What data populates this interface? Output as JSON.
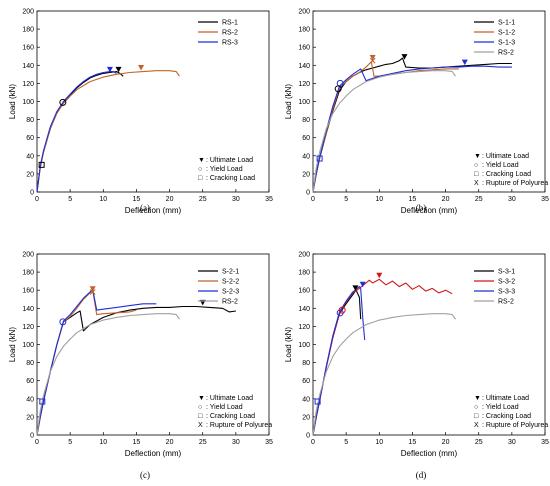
{
  "colors": {
    "black": "#000000",
    "orange": "#c0622a",
    "blue": "#1f2fd6",
    "gray": "#a0a0a0",
    "red": "#d01818"
  },
  "chart_data": [
    {
      "panel": "(a)",
      "type": "line",
      "xlabel": "Deflection (mm)",
      "ylabel": "Load (kN)",
      "xlim": [
        0,
        35
      ],
      "ylim": [
        0,
        200
      ],
      "xticks": [
        "0",
        "5",
        "10",
        "15",
        "20",
        "25",
        "30",
        "35"
      ],
      "yticks": [
        "0",
        "20",
        "40",
        "60",
        "80",
        "100",
        "120",
        "140",
        "160",
        "180",
        "200"
      ],
      "legend_position": "top-right",
      "series": [
        {
          "name": "RS-1",
          "color": "#000000",
          "x": [
            0,
            0.5,
            1,
            2,
            3,
            4,
            5,
            6,
            7,
            8,
            9,
            10,
            11,
            12,
            12.5,
            13
          ],
          "y": [
            0,
            28,
            45,
            70,
            88,
            99,
            107,
            115,
            121,
            126,
            129,
            131,
            132,
            133,
            131,
            128
          ]
        },
        {
          "name": "RS-2",
          "color": "#c0622a",
          "x": [
            0,
            0.5,
            1,
            2,
            3,
            4,
            5,
            6,
            8,
            10,
            12,
            14,
            16,
            18,
            20,
            21,
            21.5
          ],
          "y": [
            0,
            27,
            44,
            70,
            87,
            98,
            106,
            113,
            122,
            127,
            130,
            132,
            133,
            134,
            134,
            133,
            128
          ]
        },
        {
          "name": "RS-3",
          "color": "#1f2fd6",
          "x": [
            0,
            0.5,
            1,
            2,
            3,
            4,
            5,
            6,
            7,
            8,
            9,
            10,
            11,
            11.5,
            12
          ],
          "y": [
            0,
            29,
            46,
            72,
            89,
            100,
            108,
            116,
            122,
            127,
            130,
            132,
            133,
            133,
            131
          ]
        }
      ],
      "markers": {
        "ultimate": [
          {
            "x": 11,
            "y": 135,
            "color": "#1f2fd6"
          },
          {
            "x": 12.3,
            "y": 135,
            "color": "#000000"
          },
          {
            "x": 15.7,
            "y": 137,
            "color": "#c0622a"
          }
        ],
        "yield": [
          {
            "x": 3.9,
            "y": 99,
            "color": "#000000"
          }
        ],
        "cracking": [
          {
            "x": 0.7,
            "y": 30,
            "color": "#000000"
          }
        ]
      },
      "marker_legend": [
        {
          "symbol": "▼",
          "text": ": Ultimate Load"
        },
        {
          "symbol": "○",
          "text": ": Yield Load"
        },
        {
          "symbol": "□",
          "text": ": Cracking Load"
        }
      ]
    },
    {
      "panel": "(b)",
      "type": "line",
      "xlabel": "Deflection (mm)",
      "ylabel": "Load (kN)",
      "xlim": [
        0,
        35
      ],
      "ylim": [
        0,
        200
      ],
      "xticks": [
        "0",
        "5",
        "10",
        "15",
        "20",
        "25",
        "30",
        "35"
      ],
      "yticks": [
        "0",
        "20",
        "40",
        "60",
        "80",
        "100",
        "120",
        "140",
        "160",
        "180",
        "200"
      ],
      "legend_position": "top-right",
      "series": [
        {
          "name": "S-1-1",
          "color": "#000000",
          "x": [
            0,
            0.5,
            1,
            2,
            3,
            4,
            5,
            6,
            7,
            8,
            9,
            10,
            11,
            12,
            13,
            13.5,
            14,
            16,
            18,
            20,
            22,
            24,
            26,
            28,
            30
          ],
          "y": [
            0,
            20,
            37,
            65,
            90,
            112,
            122,
            128,
            132,
            135,
            137,
            139,
            141,
            142,
            145,
            148,
            138,
            137,
            137,
            138,
            139,
            140,
            141,
            142,
            142
          ]
        },
        {
          "name": "S-1-2",
          "color": "#c0622a",
          "x": [
            0,
            0.5,
            1,
            2,
            3,
            4,
            5,
            6,
            7,
            8,
            8.8,
            9.2,
            10,
            12,
            14,
            16,
            18,
            20,
            22
          ],
          "y": [
            0,
            20,
            37,
            66,
            92,
            115,
            122,
            128,
            132,
            138,
            144,
            128,
            128,
            130,
            132,
            134,
            135,
            136,
            136
          ]
        },
        {
          "name": "S-1-3",
          "color": "#1f2fd6",
          "x": [
            0,
            0.5,
            1,
            2,
            3,
            4,
            5,
            6,
            7,
            7.2,
            8,
            10,
            12,
            14,
            16,
            18,
            20,
            22,
            24,
            26,
            28,
            30
          ],
          "y": [
            0,
            21,
            38,
            68,
            95,
            117,
            124,
            130,
            135,
            136,
            123,
            128,
            131,
            134,
            136,
            137,
            138,
            138,
            139,
            139,
            138,
            138
          ]
        },
        {
          "name": "RS-2",
          "color": "#a0a0a0",
          "x": [
            0,
            0.5,
            1,
            2,
            3,
            4,
            5,
            6,
            8,
            10,
            12,
            14,
            16,
            18,
            20,
            21,
            21.5
          ],
          "y": [
            0,
            27,
            44,
            70,
            87,
            98,
            106,
            113,
            122,
            127,
            130,
            132,
            133,
            134,
            134,
            133,
            128
          ]
        }
      ],
      "markers": {
        "ultimate": [
          {
            "x": 9,
            "y": 148,
            "color": "#c0622a"
          },
          {
            "x": 13.8,
            "y": 149,
            "color": "#000000"
          },
          {
            "x": 22.9,
            "y": 143,
            "color": "#1f2fd6"
          }
        ],
        "yield": [
          {
            "x": 4.1,
            "y": 120,
            "color": "#1f2fd6"
          },
          {
            "x": 3.8,
            "y": 114,
            "color": "#000000"
          }
        ],
        "cracking": [
          {
            "x": 1,
            "y": 37,
            "color": "#1f2fd6"
          }
        ],
        "rupture": [
          {
            "x": 9,
            "y": 145,
            "color": "#c0622a"
          }
        ]
      },
      "marker_legend": [
        {
          "symbol": "▼",
          "text": ": Ultimate Load"
        },
        {
          "symbol": "○",
          "text": ": Yield Load"
        },
        {
          "symbol": "□",
          "text": ": Cracking Load"
        },
        {
          "symbol": "X",
          "text": ": Rupture of Polyurea"
        }
      ]
    },
    {
      "panel": "(c)",
      "type": "line",
      "xlabel": "Deflection (mm)",
      "ylabel": "Load (kN)",
      "xlim": [
        0,
        35
      ],
      "ylim": [
        0,
        200
      ],
      "xticks": [
        "0",
        "5",
        "10",
        "15",
        "20",
        "25",
        "30",
        "35"
      ],
      "yticks": [
        "0",
        "20",
        "40",
        "60",
        "80",
        "100",
        "120",
        "140",
        "160",
        "180",
        "200"
      ],
      "legend_position": "top-right",
      "series": [
        {
          "name": "S-2-1",
          "color": "#000000",
          "x": [
            0,
            0.5,
            1,
            2,
            3,
            4,
            5,
            6,
            6.5,
            7,
            8,
            10,
            12,
            14,
            16,
            18,
            20,
            22,
            24,
            26,
            28,
            29,
            30
          ],
          "y": [
            0,
            20,
            38,
            70,
            100,
            125,
            130,
            135,
            137,
            115,
            122,
            130,
            135,
            138,
            140,
            141,
            141,
            142,
            142,
            141,
            140,
            136,
            137
          ]
        },
        {
          "name": "S-2-2",
          "color": "#c0622a",
          "x": [
            0,
            0.5,
            1,
            2,
            3,
            4,
            5,
            6,
            7,
            8,
            8.4,
            9,
            10,
            12,
            14,
            15
          ],
          "y": [
            0,
            20,
            38,
            70,
            100,
            125,
            131,
            140,
            150,
            157,
            160,
            133,
            134,
            135,
            136,
            138
          ]
        },
        {
          "name": "S-2-3",
          "color": "#1f2fd6",
          "x": [
            0,
            0.5,
            1,
            2,
            3,
            4,
            5,
            6,
            7,
            8,
            8.4,
            9,
            10,
            12,
            14,
            16,
            18
          ],
          "y": [
            0,
            20,
            38,
            70,
            100,
            126,
            133,
            142,
            151,
            158,
            161,
            138,
            139,
            141,
            143,
            145,
            145
          ]
        },
        {
          "name": "RS-2",
          "color": "#a0a0a0",
          "x": [
            0,
            0.5,
            1,
            2,
            3,
            4,
            5,
            6,
            8,
            10,
            12,
            14,
            16,
            18,
            20,
            21,
            21.5
          ],
          "y": [
            0,
            27,
            44,
            70,
            87,
            98,
            106,
            113,
            122,
            127,
            130,
            132,
            133,
            134,
            134,
            133,
            128
          ]
        }
      ],
      "markers": {
        "ultimate": [
          {
            "x": 8.4,
            "y": 161,
            "color": "#c0622a"
          },
          {
            "x": 25,
            "y": 146,
            "color": "#000000"
          }
        ],
        "yield": [
          {
            "x": 3.9,
            "y": 125,
            "color": "#1f2fd6"
          }
        ],
        "cracking": [
          {
            "x": 0.8,
            "y": 37,
            "color": "#1f2fd6"
          }
        ],
        "rupture": [
          {
            "x": 8.4,
            "y": 158,
            "color": "#c0622a"
          }
        ]
      },
      "marker_legend": [
        {
          "symbol": "▼",
          "text": ": Ultimate Load"
        },
        {
          "symbol": "○",
          "text": ": Yield Load"
        },
        {
          "symbol": "□",
          "text": ": Cracking Load"
        },
        {
          "symbol": "X",
          "text": ": Rupture of Polyurea"
        }
      ]
    },
    {
      "panel": "(d)",
      "type": "line",
      "xlabel": "Deflection (mm)",
      "ylabel": "Load (kN)",
      "xlim": [
        0,
        35
      ],
      "ylim": [
        0,
        200
      ],
      "xticks": [
        "0",
        "5",
        "10",
        "15",
        "20",
        "25",
        "30",
        "35"
      ],
      "yticks": [
        "0",
        "20",
        "40",
        "60",
        "80",
        "100",
        "120",
        "140",
        "160",
        "180",
        "200"
      ],
      "legend_position": "top-right",
      "series": [
        {
          "name": "S-3-1",
          "color": "#000000",
          "x": [
            0,
            0.5,
            1,
            2,
            3,
            4,
            5,
            6,
            6.5,
            7,
            7.2
          ],
          "y": [
            0,
            20,
            38,
            75,
            108,
            134,
            145,
            155,
            160,
            152,
            128
          ]
        },
        {
          "name": "S-3-2",
          "color": "#d01818",
          "x": [
            0,
            0.5,
            1,
            2,
            3,
            4,
            5,
            6,
            7,
            8,
            8.5,
            9,
            10,
            11,
            12,
            13,
            14,
            15,
            16,
            17,
            18,
            19,
            20,
            21
          ],
          "y": [
            0,
            20,
            38,
            75,
            108,
            135,
            147,
            157,
            162,
            168,
            171,
            168,
            172,
            166,
            170,
            164,
            168,
            161,
            165,
            159,
            162,
            157,
            160,
            156
          ]
        },
        {
          "name": "S-3-3",
          "color": "#1f2fd6",
          "x": [
            0,
            0.5,
            1,
            2,
            3,
            4,
            5,
            6,
            7,
            7.2,
            7.5,
            7.8
          ],
          "y": [
            0,
            20,
            38,
            76,
            110,
            136,
            148,
            158,
            164,
            162,
            130,
            105
          ]
        },
        {
          "name": "RS-2",
          "color": "#a0a0a0",
          "x": [
            0,
            0.5,
            1,
            2,
            3,
            4,
            5,
            6,
            8,
            10,
            12,
            14,
            16,
            18,
            20,
            21,
            21.5
          ],
          "y": [
            0,
            27,
            44,
            70,
            87,
            98,
            106,
            113,
            122,
            127,
            130,
            132,
            133,
            134,
            134,
            133,
            128
          ]
        }
      ],
      "markers": {
        "ultimate": [
          {
            "x": 6.4,
            "y": 162,
            "color": "#000000"
          },
          {
            "x": 7.5,
            "y": 166,
            "color": "#1f2fd6"
          },
          {
            "x": 10,
            "y": 176,
            "color": "#d01818"
          }
        ],
        "yield": [
          {
            "x": 4.1,
            "y": 135,
            "color": "#1f2fd6"
          },
          {
            "x": 4.4,
            "y": 138,
            "color": "#d01818"
          }
        ],
        "cracking": [
          {
            "x": 0.7,
            "y": 37,
            "color": "#1f2fd6"
          }
        ]
      },
      "marker_legend": [
        {
          "symbol": "▼",
          "text": ": Ultimate Load"
        },
        {
          "symbol": "○",
          "text": ": Yield Load"
        },
        {
          "symbol": "□",
          "text": ": Cracking Load"
        },
        {
          "symbol": "X",
          "text": ": Rupture of Polyurea"
        }
      ]
    }
  ]
}
